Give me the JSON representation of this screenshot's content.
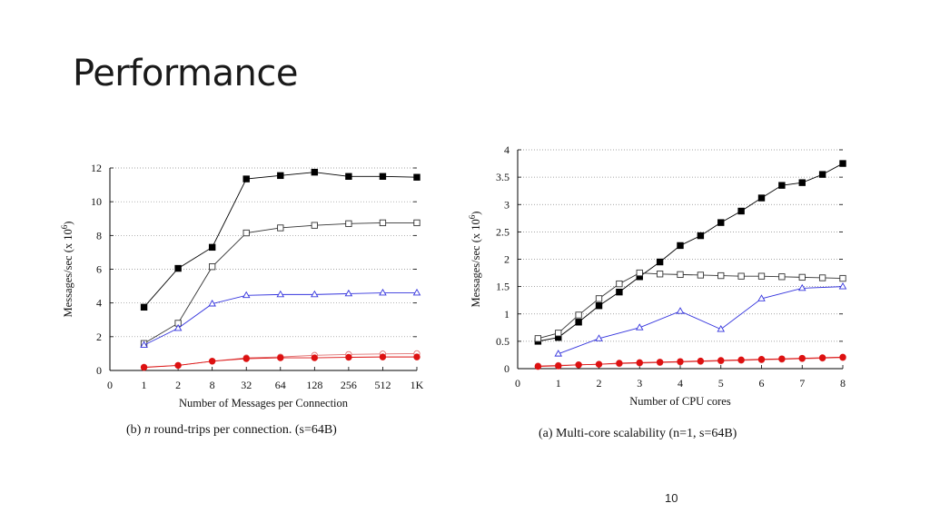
{
  "slide": {
    "title": "Performance",
    "page_number": "10"
  },
  "chart_data": [
    {
      "id": "chart-b",
      "type": "line",
      "caption_prefix": "(b) ",
      "caption_var": "n",
      "caption_suffix": " round-trips per connection. (s=64B)",
      "xlabel": "Number of Messages per Connection",
      "ylabel": "Messages/sec (x 10",
      "ylabel_exp": "6",
      "ylabel_close": ")",
      "categories": [
        "0",
        "1",
        "2",
        "8",
        "32",
        "64",
        "128",
        "256",
        "512",
        "1K"
      ],
      "ylim": [
        0,
        12
      ],
      "yticks": [
        0,
        2,
        4,
        6,
        8,
        10,
        12
      ],
      "grid": "horizontal-dotted",
      "series": [
        {
          "marker": "square-filled",
          "color": "#000000",
          "x": [
            1,
            2,
            3,
            4,
            5,
            6,
            7,
            8,
            9
          ],
          "values": [
            3.75,
            6.05,
            7.3,
            11.35,
            11.55,
            11.75,
            11.5,
            11.5,
            11.45
          ]
        },
        {
          "marker": "square-open",
          "color": "#333333",
          "x": [
            1,
            2,
            3,
            4,
            5,
            6,
            7,
            8,
            9
          ],
          "values": [
            1.6,
            2.8,
            6.15,
            8.15,
            8.45,
            8.6,
            8.7,
            8.75,
            8.75
          ]
        },
        {
          "marker": "triangle-open",
          "color": "#3333dd",
          "x": [
            1,
            2,
            3,
            4,
            5,
            6,
            7,
            8,
            9
          ],
          "values": [
            1.5,
            2.5,
            3.95,
            4.45,
            4.5,
            4.5,
            4.55,
            4.6,
            4.6
          ]
        },
        {
          "marker": "circle-open",
          "color": "#e07070",
          "x": [
            1,
            2,
            3,
            4,
            5,
            6,
            7,
            8,
            9
          ],
          "values": [
            0.2,
            0.3,
            0.55,
            0.75,
            0.8,
            0.9,
            0.95,
            0.98,
            1.0
          ]
        },
        {
          "marker": "circle-filled",
          "color": "#dd1111",
          "x": [
            1,
            2,
            3,
            4,
            5,
            6,
            7,
            8,
            9
          ],
          "values": [
            0.18,
            0.3,
            0.55,
            0.7,
            0.75,
            0.75,
            0.78,
            0.8,
            0.8
          ]
        }
      ]
    },
    {
      "id": "chart-a",
      "type": "line",
      "caption_prefix": "(a) Multi-core scalability (n=1, s=64B)",
      "caption_var": "",
      "caption_suffix": "",
      "xlabel": "Number of CPU cores",
      "ylabel": "Messages/sec (x 10",
      "ylabel_exp": "6",
      "ylabel_close": ")",
      "xticks": [
        0,
        1,
        2,
        3,
        4,
        5,
        6,
        7,
        8
      ],
      "xlim": [
        0,
        8
      ],
      "ylim": [
        0,
        4
      ],
      "yticks": [
        0,
        0.5,
        1,
        1.5,
        2,
        2.5,
        3,
        3.5,
        4
      ],
      "grid": "horizontal-dotted",
      "series": [
        {
          "marker": "square-filled",
          "color": "#000000",
          "x": [
            0.5,
            1,
            1.5,
            2,
            2.5,
            3,
            3.5,
            4,
            4.5,
            5,
            5.5,
            6,
            6.5,
            7,
            7.5,
            8
          ],
          "values": [
            0.5,
            0.57,
            0.85,
            1.15,
            1.4,
            1.68,
            1.95,
            2.25,
            2.43,
            2.67,
            2.88,
            3.12,
            3.35,
            3.4,
            3.55,
            3.75
          ]
        },
        {
          "marker": "square-open",
          "color": "#333333",
          "x": [
            0.5,
            1,
            1.5,
            2,
            2.5,
            3,
            3.5,
            4,
            4.5,
            5,
            5.5,
            6,
            6.5,
            7,
            7.5,
            8
          ],
          "values": [
            0.55,
            0.65,
            0.98,
            1.28,
            1.55,
            1.75,
            1.73,
            1.72,
            1.71,
            1.7,
            1.69,
            1.69,
            1.68,
            1.67,
            1.66,
            1.65
          ]
        },
        {
          "marker": "triangle-open",
          "color": "#3333dd",
          "x": [
            1,
            2,
            3,
            4,
            5,
            6,
            7,
            8
          ],
          "values": [
            0.27,
            0.55,
            0.75,
            1.05,
            0.72,
            1.28,
            1.47,
            1.5
          ]
        },
        {
          "marker": "circle-open",
          "color": "#e07070",
          "x": [
            0.5,
            1,
            1.5,
            2,
            2.5,
            3,
            3.5,
            4,
            4.5,
            5,
            5.5,
            6,
            6.5,
            7,
            7.5,
            8
          ],
          "values": [
            0.05,
            0.06,
            0.07,
            0.08,
            0.09,
            0.1,
            0.11,
            0.12,
            0.13,
            0.14,
            0.15,
            0.16,
            0.17,
            0.18,
            0.19,
            0.2
          ]
        },
        {
          "marker": "circle-filled",
          "color": "#dd1111",
          "x": [
            0.5,
            1,
            1.5,
            2,
            2.5,
            3,
            3.5,
            4,
            4.5,
            5,
            5.5,
            6,
            6.5,
            7,
            7.5,
            8
          ],
          "values": [
            0.04,
            0.05,
            0.07,
            0.08,
            0.1,
            0.11,
            0.12,
            0.13,
            0.14,
            0.15,
            0.16,
            0.17,
            0.18,
            0.19,
            0.2,
            0.21
          ]
        }
      ]
    }
  ]
}
